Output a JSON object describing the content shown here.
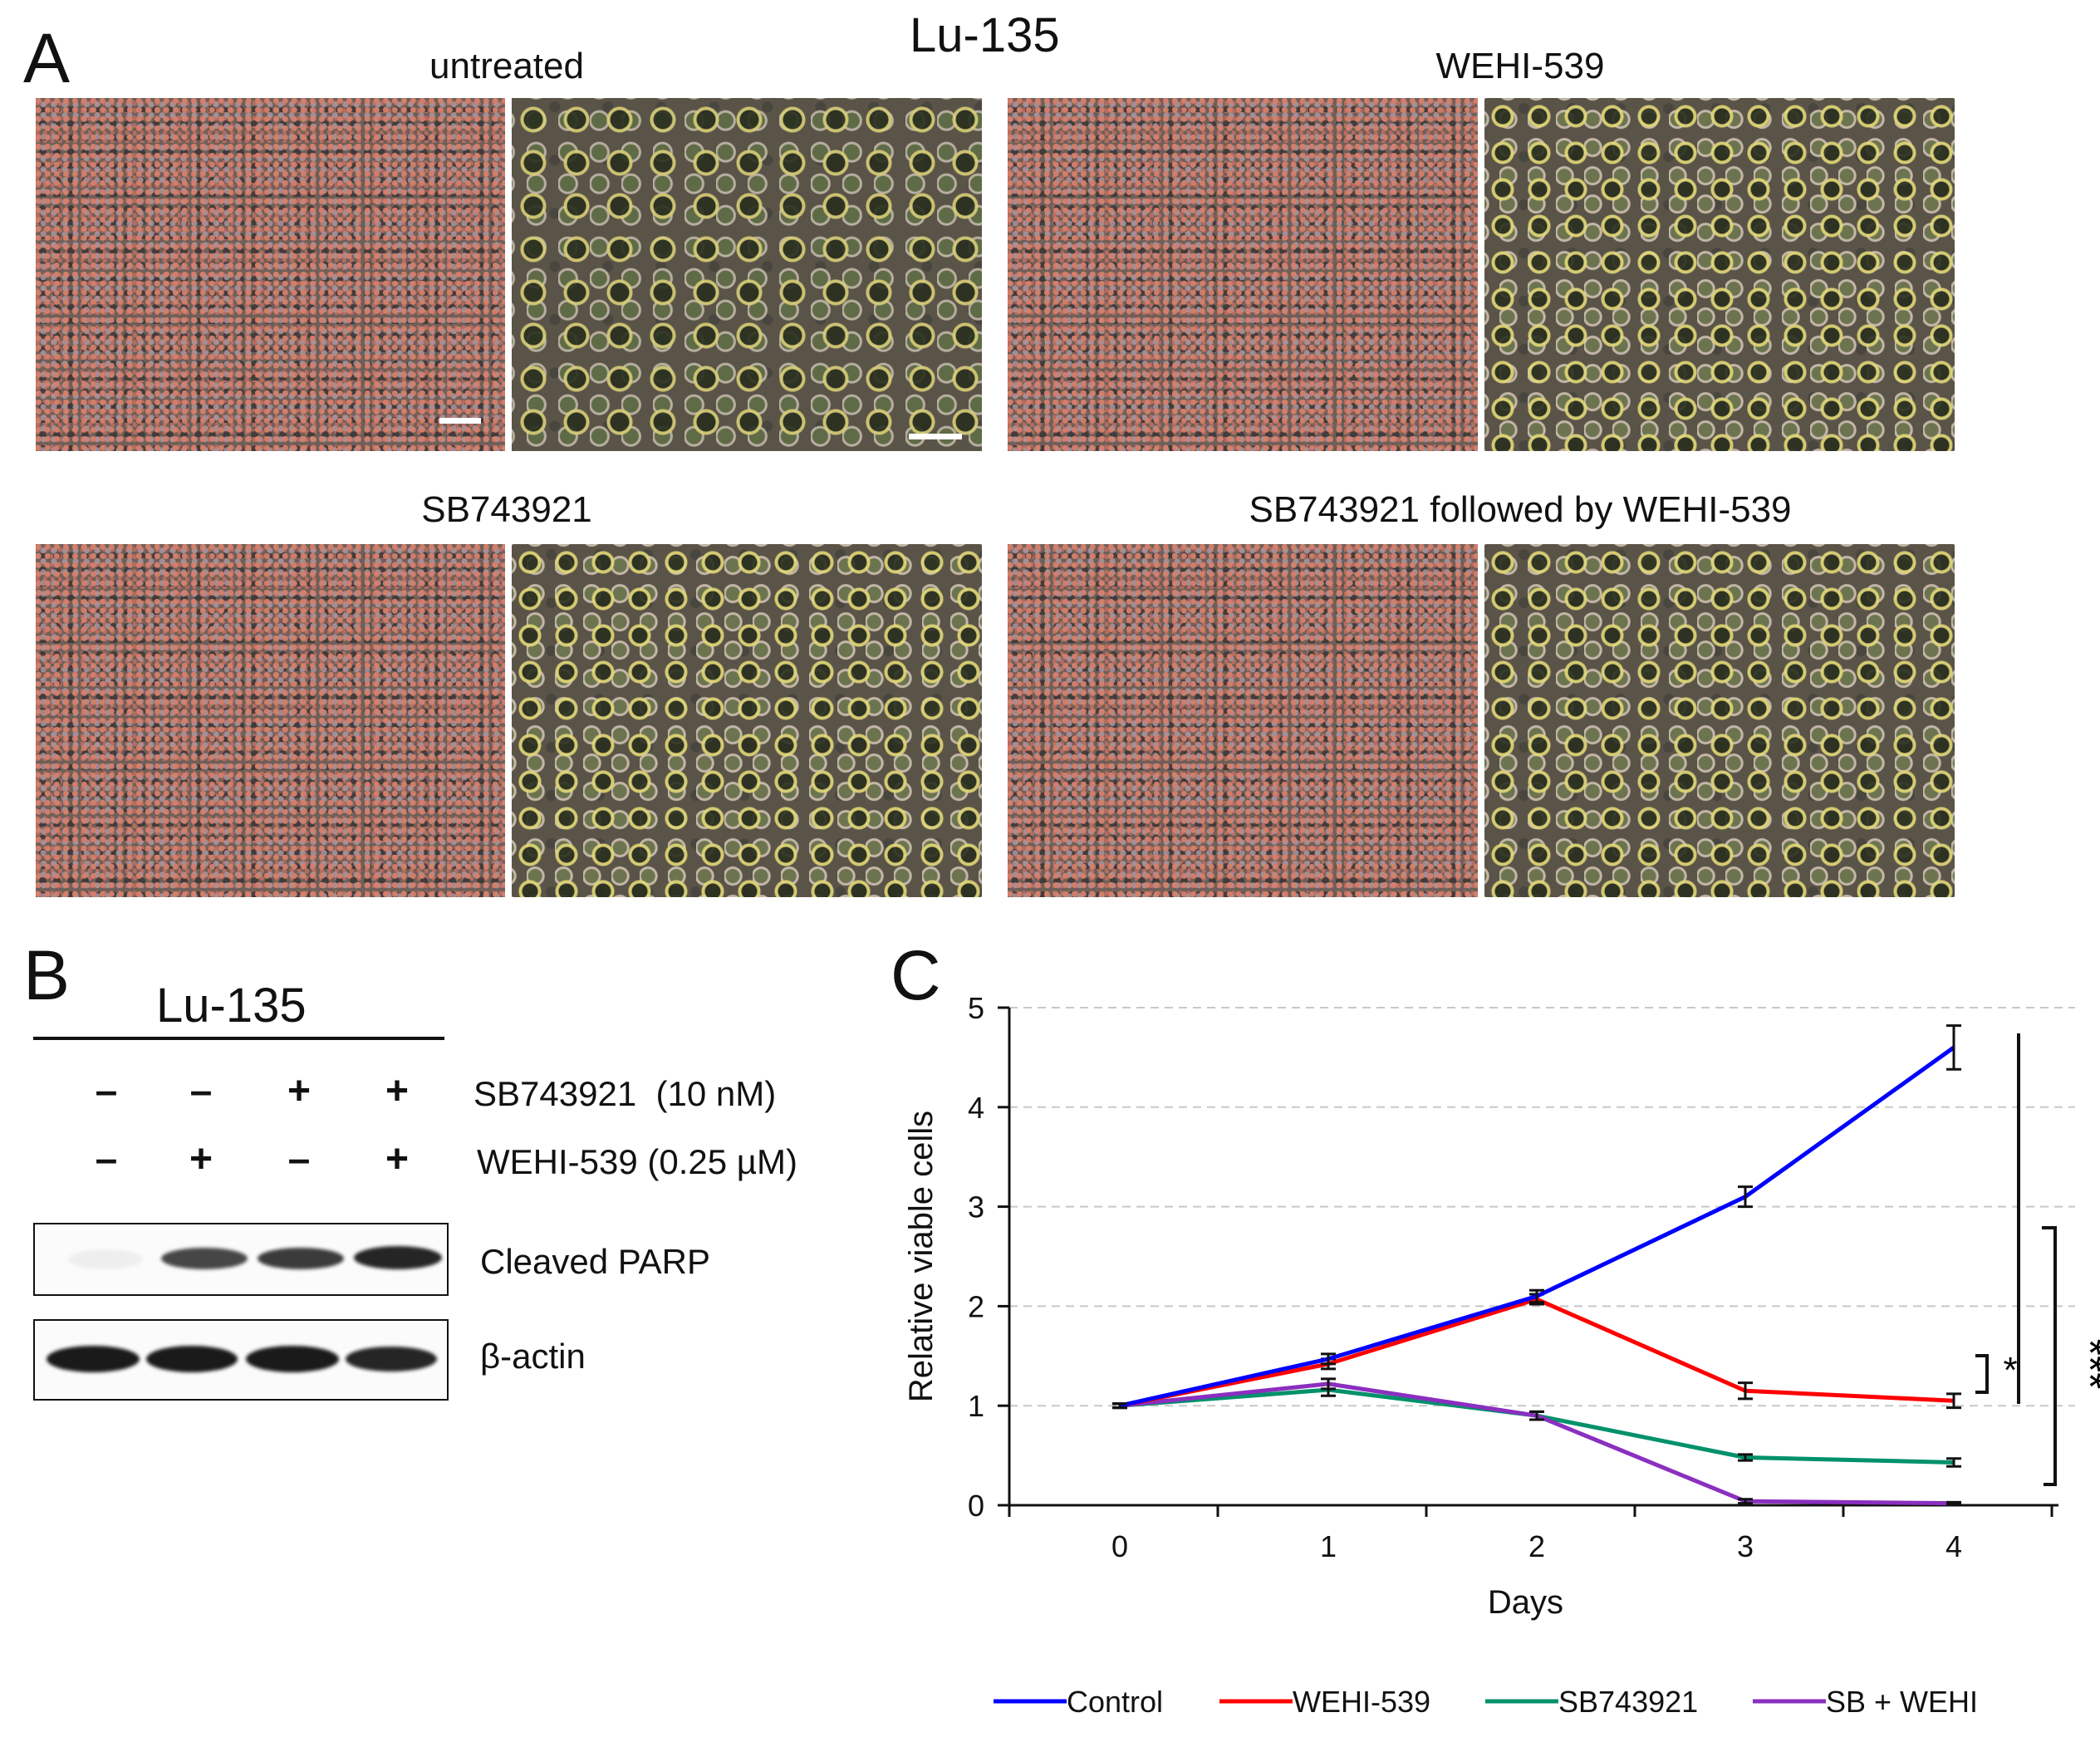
{
  "figure_title": "Lu-135",
  "panel_a": {
    "letter": "A",
    "conditions": [
      {
        "caption": "untreated"
      },
      {
        "caption": "WEHI-539"
      },
      {
        "caption": "SB743921"
      },
      {
        "caption": "SB743921 followed by WEHI-539"
      }
    ]
  },
  "panel_b": {
    "letter": "B",
    "title": "Lu-135",
    "treatments": [
      {
        "label": "SB743921  (10 nM)",
        "signs": [
          "–",
          "–",
          "+",
          "+"
        ]
      },
      {
        "label": "WEHI-539 (0.25 µM)",
        "signs": [
          "–",
          "+",
          "–",
          "+"
        ]
      }
    ],
    "blots": [
      {
        "label": "Cleaved PARP",
        "intensities": [
          0.05,
          0.8,
          0.85,
          0.95
        ]
      },
      {
        "label": "β-actin",
        "intensities": [
          1.0,
          1.0,
          1.0,
          0.95
        ]
      }
    ]
  },
  "panel_c": {
    "letter": "C",
    "significance": {
      "high": "***",
      "low": "*"
    }
  },
  "chart_data": {
    "type": "line",
    "title": "",
    "xlabel": "Days",
    "ylabel": "Relative viable cells",
    "x": [
      0,
      1,
      2,
      3,
      4
    ],
    "xlim": [
      0,
      4
    ],
    "ylim": [
      0,
      5
    ],
    "yticks": [
      0,
      1,
      2,
      3,
      4,
      5
    ],
    "grid": "horizontal dashed",
    "legend_position": "bottom",
    "series": [
      {
        "name": "Control",
        "color": "#0000ff",
        "values": [
          1.0,
          1.47,
          2.1,
          3.1,
          4.6
        ],
        "errors": [
          0.02,
          0.05,
          0.06,
          0.1,
          0.22
        ]
      },
      {
        "name": "WEHI-539",
        "color": "#ff0000",
        "values": [
          1.0,
          1.42,
          2.07,
          1.15,
          1.05
        ],
        "errors": [
          0.02,
          0.05,
          0.05,
          0.08,
          0.07
        ]
      },
      {
        "name": "SB743921",
        "color": "#00916b",
        "values": [
          1.0,
          1.16,
          0.9,
          0.48,
          0.43
        ],
        "errors": [
          0.02,
          0.06,
          0.04,
          0.03,
          0.04
        ]
      },
      {
        "name": "SB + WEHI",
        "color": "#8a2fbf",
        "values": [
          1.0,
          1.22,
          0.9,
          0.04,
          0.02
        ],
        "errors": [
          0.02,
          0.05,
          0.04,
          0.02,
          0.01
        ]
      }
    ]
  }
}
